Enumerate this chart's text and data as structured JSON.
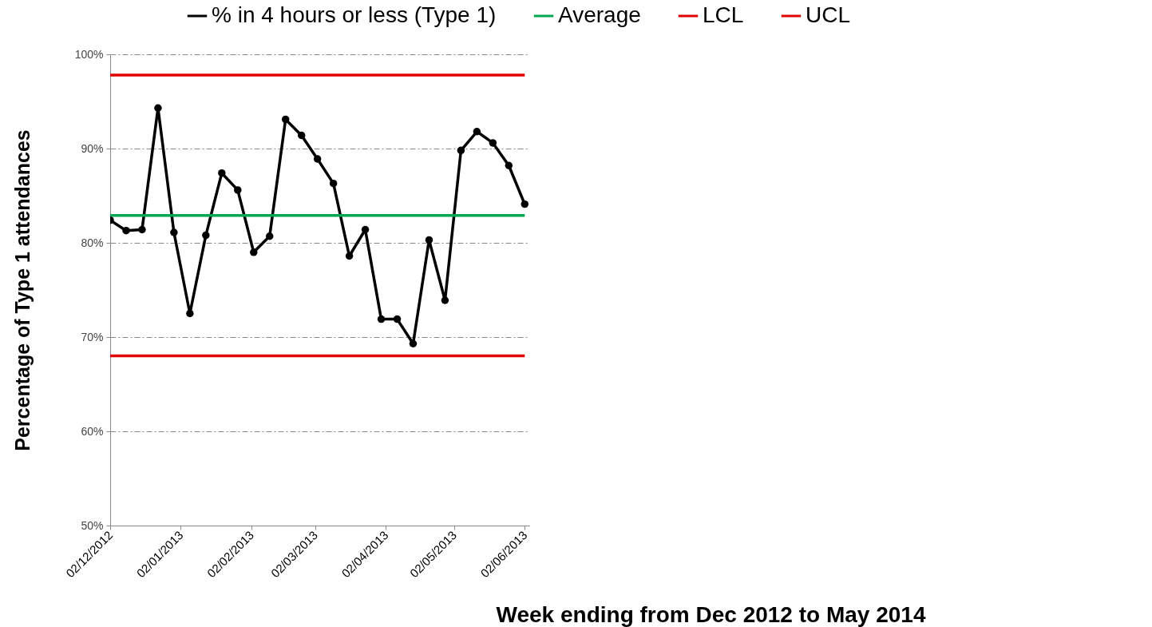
{
  "chart_data": {
    "type": "line",
    "xlabel": "Week ending from Dec 2012 to May 2014",
    "ylabel": "Percentage of Type 1 attendances",
    "x": [
      "2012-12-02",
      "2012-12-09",
      "2012-12-16",
      "2012-12-23",
      "2012-12-30",
      "2013-01-06",
      "2013-01-13",
      "2013-01-20",
      "2013-01-27",
      "2013-02-03",
      "2013-02-10",
      "2013-02-17",
      "2013-02-24",
      "2013-03-03",
      "2013-03-10",
      "2013-03-17",
      "2013-03-24",
      "2013-03-31",
      "2013-04-07",
      "2013-04-14",
      "2013-04-21",
      "2013-04-28",
      "2013-05-05",
      "2013-05-12",
      "2013-05-19",
      "2013-05-26",
      "2013-06-02"
    ],
    "series": [
      {
        "name": "% in 4 hours or less (Type 1)",
        "color": "#000000",
        "marker": "circle",
        "values": [
          82.4,
          81.3,
          81.4,
          94.3,
          81.1,
          72.5,
          80.8,
          87.4,
          85.6,
          79.0,
          80.7,
          93.1,
          91.4,
          88.9,
          86.3,
          78.6,
          81.4,
          71.9,
          71.9,
          69.3,
          80.3,
          73.9,
          89.8,
          91.8,
          90.6,
          88.2,
          84.1
        ]
      },
      {
        "name": "Average",
        "color": "#00a650",
        "marker": "none",
        "values": [
          82.9,
          82.9,
          82.9,
          82.9,
          82.9,
          82.9,
          82.9,
          82.9,
          82.9,
          82.9,
          82.9,
          82.9,
          82.9,
          82.9,
          82.9,
          82.9,
          82.9,
          82.9,
          82.9,
          82.9,
          82.9,
          82.9,
          82.9,
          82.9,
          82.9,
          82.9,
          82.9
        ]
      },
      {
        "name": "LCL",
        "color": "#e00000",
        "marker": "none",
        "values": [
          68.0,
          68.0,
          68.0,
          68.0,
          68.0,
          68.0,
          68.0,
          68.0,
          68.0,
          68.0,
          68.0,
          68.0,
          68.0,
          68.0,
          68.0,
          68.0,
          68.0,
          68.0,
          68.0,
          68.0,
          68.0,
          68.0,
          68.0,
          68.0,
          68.0,
          68.0,
          68.0
        ]
      },
      {
        "name": "UCL",
        "color": "#e00000",
        "marker": "none",
        "values": [
          97.8,
          97.8,
          97.8,
          97.8,
          97.8,
          97.8,
          97.8,
          97.8,
          97.8,
          97.8,
          97.8,
          97.8,
          97.8,
          97.8,
          97.8,
          97.8,
          97.8,
          97.8,
          97.8,
          97.8,
          97.8,
          97.8,
          97.8,
          97.8,
          97.8,
          97.8,
          97.8
        ]
      }
    ],
    "xlim": [
      "2012-12-02",
      "2013-06-04"
    ],
    "xticks": [
      {
        "value": "2012-12-02",
        "label": "02/12/2012"
      },
      {
        "value": "2013-01-02",
        "label": "02/01/2013"
      },
      {
        "value": "2013-02-02",
        "label": "02/02/2013"
      },
      {
        "value": "2013-03-02",
        "label": "02/03/2013"
      },
      {
        "value": "2013-04-02",
        "label": "02/04/2013"
      },
      {
        "value": "2013-05-02",
        "label": "02/05/2013"
      },
      {
        "value": "2013-06-02",
        "label": "02/06/2013"
      }
    ],
    "ylim": [
      50,
      100
    ],
    "yticks": [
      {
        "value": 50,
        "label": "50%"
      },
      {
        "value": 60,
        "label": "60%"
      },
      {
        "value": 70,
        "label": "70%"
      },
      {
        "value": 80,
        "label": "80%"
      },
      {
        "value": 90,
        "label": "90%"
      },
      {
        "value": 100,
        "label": "100%"
      }
    ],
    "grid": "y",
    "legend": "top"
  }
}
